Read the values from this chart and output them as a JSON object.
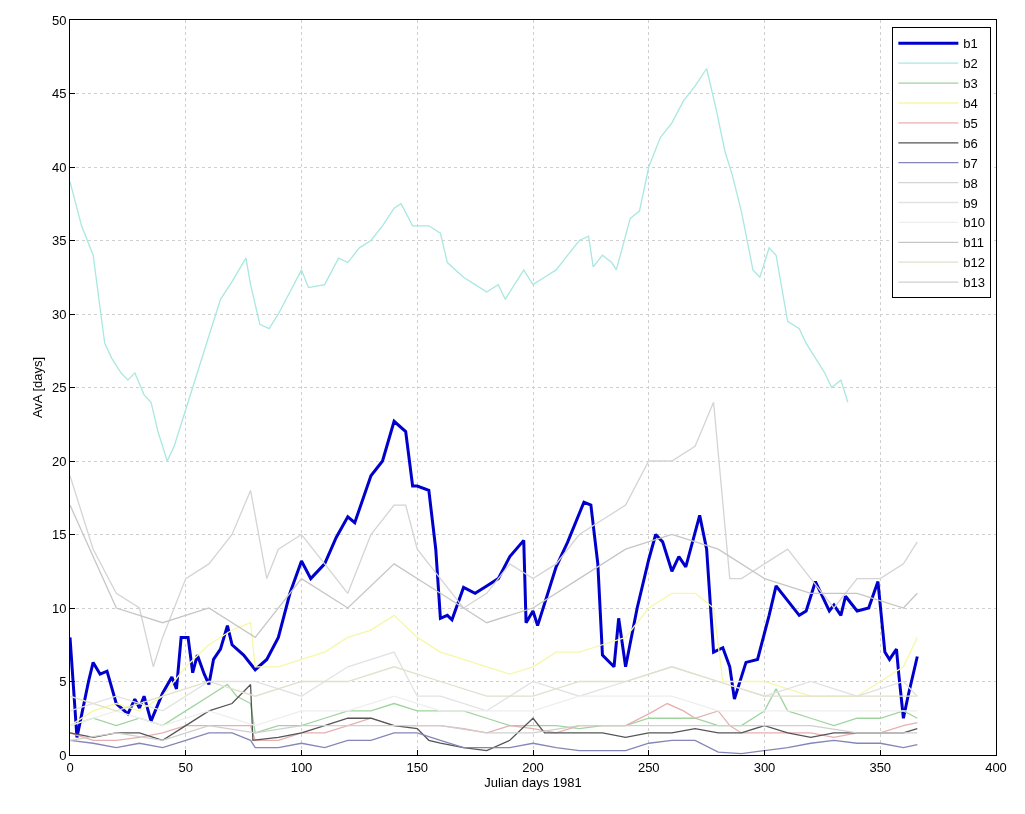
{
  "chart_data": {
    "type": "line",
    "xlabel": "Julian days 1981",
    "ylabel": "AvA [days]",
    "xlim": [
      0,
      400
    ],
    "xticks": [
      0,
      50,
      100,
      150,
      200,
      250,
      300,
      350,
      400
    ],
    "ylim": [
      0,
      50
    ],
    "yticks": [
      0,
      5,
      10,
      15,
      20,
      25,
      30,
      35,
      40,
      45,
      50
    ],
    "grid": true,
    "legend": "top right",
    "line_style": "solid",
    "marker": "none",
    "series": [
      {
        "name": "b1",
        "color": "#0000cc",
        "x": [
          0,
          3,
          8,
          10,
          13,
          16,
          20,
          25,
          28,
          30,
          32,
          35,
          40,
          44,
          46,
          48,
          51,
          53,
          55,
          58,
          60,
          62,
          65,
          68,
          70,
          75,
          80,
          85,
          90,
          95,
          100,
          104,
          110,
          115,
          120,
          123,
          130,
          135,
          140,
          145,
          148,
          150,
          155,
          158,
          160,
          163,
          165,
          170,
          175,
          180,
          185,
          190,
          196,
          197,
          200,
          202,
          210,
          215,
          222,
          225,
          228,
          230,
          235,
          237,
          240,
          245,
          250,
          253,
          256,
          260,
          263,
          266,
          272,
          275,
          278,
          282,
          285,
          287,
          292,
          297,
          302,
          305,
          310,
          315,
          318,
          322,
          328,
          330,
          333,
          335,
          340,
          345,
          349,
          352,
          354,
          357,
          358,
          360,
          362,
          366
        ],
        "values": [
          8,
          1.2,
          5,
          6.3,
          5.5,
          5.7,
          3.5,
          2.8,
          3.8,
          3.2,
          4,
          2.3,
          4.2,
          5.3,
          4.5,
          8,
          8,
          5.6,
          6.8,
          5.5,
          4.8,
          6.5,
          7.2,
          8.8,
          7.5,
          6.8,
          5.8,
          6.5,
          8,
          11,
          13.2,
          12,
          13,
          14.8,
          16.2,
          15.8,
          19,
          20,
          22.7,
          22,
          18.3,
          18.3,
          18,
          14,
          9.3,
          9.5,
          9.2,
          11.4,
          11,
          11.5,
          12,
          13.5,
          14.6,
          9,
          9.8,
          8.8,
          12.8,
          14.5,
          17.2,
          17,
          13,
          6.8,
          6,
          9.3,
          6,
          10,
          13.3,
          15,
          14.5,
          12.5,
          13.5,
          12.8,
          16.3,
          14,
          7,
          7.3,
          6,
          3.8,
          6.3,
          6.5,
          9.5,
          11.5,
          10.5,
          9.5,
          9.8,
          11.8,
          9.8,
          10.2,
          9.5,
          10.8,
          9.8,
          10,
          11.8,
          7,
          6.5,
          7.2,
          5.5,
          2.5,
          4,
          6.7
        ]
      },
      {
        "name": "b2",
        "color": "#a8e8e0",
        "x": [
          0,
          5,
          10,
          15,
          18,
          22,
          25,
          28,
          32,
          35,
          38,
          42,
          45,
          50,
          55,
          60,
          65,
          70,
          76,
          78,
          82,
          86,
          90,
          95,
          100,
          103,
          110,
          116,
          120,
          125,
          130,
          135,
          140,
          143,
          148,
          155,
          160,
          163,
          170,
          175,
          180,
          185,
          188,
          192,
          196,
          200,
          205,
          210,
          215,
          220,
          224,
          226,
          230,
          234,
          236,
          242,
          246,
          250,
          255,
          260,
          265,
          270,
          275,
          279,
          283,
          286,
          290,
          295,
          298,
          302,
          305,
          310,
          315,
          318,
          322,
          326,
          329,
          333,
          336
        ],
        "values": [
          39,
          36,
          34,
          28,
          27,
          26,
          25.5,
          26,
          24.5,
          24,
          22,
          20,
          21,
          23.5,
          26,
          28.5,
          31,
          32.2,
          33.8,
          32,
          29.3,
          29,
          30,
          31.5,
          33,
          31.8,
          32,
          33.8,
          33.5,
          34.5,
          35,
          36,
          37.2,
          37.5,
          36,
          36,
          35.5,
          33.5,
          32.5,
          32,
          31.5,
          32,
          31,
          32,
          33,
          32,
          32.5,
          33,
          34,
          35,
          35.3,
          33.2,
          34,
          33.5,
          33,
          36.5,
          37,
          40,
          42,
          43,
          44.5,
          45.5,
          46.7,
          44,
          41,
          39.5,
          37,
          33,
          32.5,
          34.5,
          34,
          29.5,
          29,
          28,
          27,
          26,
          25,
          25.5,
          24
        ]
      },
      {
        "name": "b3",
        "color": "#9fd49f",
        "x": [
          0,
          10,
          20,
          30,
          40,
          50,
          60,
          68,
          72,
          78,
          80,
          90,
          100,
          110,
          120,
          130,
          140,
          150,
          160,
          170,
          180,
          190,
          200,
          210,
          220,
          230,
          240,
          250,
          260,
          270,
          280,
          290,
          300,
          305,
          310,
          320,
          330,
          340,
          350,
          360,
          366
        ],
        "values": [
          2,
          2.5,
          2,
          2.5,
          2,
          3,
          4,
          4.8,
          4,
          3.5,
          1.5,
          2,
          2,
          2.5,
          3,
          3,
          3.5,
          3,
          3,
          3,
          2.5,
          2,
          2,
          2,
          1.8,
          2,
          2,
          2.5,
          2.5,
          2.5,
          2,
          2,
          3,
          4.5,
          3,
          2.5,
          2,
          2.5,
          2.5,
          3,
          2.5
        ]
      },
      {
        "name": "b4",
        "color": "#f7f7a8",
        "x": [
          0,
          10,
          20,
          30,
          40,
          50,
          60,
          70,
          78,
          80,
          90,
          100,
          110,
          120,
          130,
          140,
          150,
          160,
          170,
          180,
          190,
          200,
          210,
          220,
          230,
          240,
          250,
          260,
          270,
          278,
          282,
          290,
          300,
          310,
          320,
          330,
          340,
          350,
          360,
          366
        ],
        "values": [
          2,
          3,
          3.5,
          3,
          4,
          6,
          7.5,
          8.5,
          9,
          6,
          6,
          6.5,
          7,
          8,
          8.5,
          9.5,
          8,
          7,
          6.5,
          6,
          5.5,
          6,
          7,
          7,
          7.5,
          8,
          10,
          11,
          11,
          10,
          5,
          5,
          5,
          4.5,
          4,
          4,
          4,
          5,
          6,
          8
        ]
      },
      {
        "name": "b5",
        "color": "#e6b0b0",
        "x": [
          0,
          10,
          20,
          30,
          40,
          50,
          60,
          70,
          78,
          80,
          90,
          100,
          110,
          120,
          130,
          140,
          150,
          160,
          170,
          180,
          190,
          200,
          210,
          220,
          230,
          240,
          250,
          258,
          265,
          270,
          280,
          285,
          290,
          300,
          310,
          320,
          330,
          340,
          350,
          360,
          366
        ],
        "values": [
          1.5,
          1,
          1,
          1.2,
          1.5,
          2,
          2,
          2,
          2,
          1,
          1,
          1.5,
          1.5,
          2,
          2.5,
          2,
          2,
          2,
          1.8,
          1.5,
          2,
          1.8,
          1.5,
          2,
          2,
          2,
          2.8,
          3.5,
          3,
          2.5,
          3,
          2,
          1.5,
          1.5,
          1.5,
          1.5,
          1.2,
          1.5,
          1.5,
          2,
          2.2
        ]
      },
      {
        "name": "b6",
        "color": "#555555",
        "x": [
          0,
          10,
          20,
          30,
          40,
          50,
          60,
          70,
          78,
          79,
          90,
          100,
          110,
          120,
          130,
          140,
          150,
          155,
          160,
          170,
          180,
          190,
          200,
          205,
          210,
          220,
          230,
          240,
          250,
          260,
          270,
          280,
          290,
          300,
          310,
          320,
          330,
          340,
          350,
          360,
          366
        ],
        "values": [
          1.5,
          1.2,
          1.5,
          1.5,
          1,
          2,
          3,
          3.5,
          4.8,
          1,
          1.2,
          1.5,
          2,
          2.5,
          2.5,
          2,
          1.8,
          1,
          0.8,
          0.5,
          0.3,
          1,
          2.5,
          1.5,
          1.5,
          1.5,
          1.5,
          1.2,
          1.5,
          1.5,
          1.8,
          1.5,
          1.5,
          2,
          1.5,
          1.2,
          1.5,
          1.5,
          1.5,
          1.5,
          1.8
        ]
      },
      {
        "name": "b7",
        "color": "#8585b8",
        "x": [
          0,
          10,
          20,
          30,
          40,
          50,
          60,
          70,
          78,
          80,
          90,
          100,
          110,
          120,
          130,
          140,
          150,
          160,
          170,
          180,
          190,
          200,
          210,
          220,
          230,
          240,
          250,
          260,
          270,
          280,
          290,
          300,
          310,
          320,
          330,
          340,
          350,
          360,
          366
        ],
        "values": [
          1,
          0.8,
          0.5,
          0.8,
          0.5,
          1,
          1.5,
          1.5,
          1,
          0.5,
          0.5,
          0.8,
          0.5,
          1,
          1,
          1.5,
          1.5,
          1,
          0.5,
          0.5,
          0.5,
          0.8,
          0.5,
          0.3,
          0.3,
          0.3,
          0.8,
          1,
          1,
          0.2,
          0.1,
          0.3,
          0.5,
          0.8,
          1,
          0.8,
          0.8,
          0.5,
          0.7
        ]
      },
      {
        "name": "b8",
        "color": "#d4d4d4",
        "x": [
          0,
          10,
          20,
          30,
          36,
          40,
          50,
          60,
          70,
          78,
          85,
          90,
          100,
          110,
          120,
          130,
          140,
          145,
          150,
          160,
          170,
          180,
          190,
          200,
          210,
          220,
          230,
          240,
          250,
          260,
          270,
          278,
          285,
          290,
          300,
          310,
          320,
          330,
          340,
          350,
          360,
          366
        ],
        "values": [
          19,
          14,
          11,
          10,
          6,
          8,
          12,
          13,
          15,
          18,
          12,
          14,
          15,
          13,
          11,
          15,
          17,
          17,
          14,
          12,
          10,
          11,
          13,
          12,
          13,
          15,
          16,
          17,
          20,
          20,
          21,
          24,
          12,
          12,
          13,
          14,
          12,
          10,
          12,
          12,
          13,
          14.5
        ]
      },
      {
        "name": "b9",
        "color": "#e2e2e2",
        "x": [
          0,
          20,
          40,
          60,
          80,
          100,
          120,
          140,
          150,
          160,
          180,
          200,
          220,
          240,
          260,
          280,
          300,
          320,
          340,
          360,
          366
        ],
        "values": [
          3,
          4,
          3,
          5,
          5,
          4,
          6,
          7,
          4,
          4,
          3,
          5,
          4,
          5,
          6,
          5,
          4,
          5,
          4,
          5,
          4
        ]
      },
      {
        "name": "b10",
        "color": "#eeeeee",
        "x": [
          0,
          20,
          40,
          60,
          80,
          100,
          120,
          140,
          160,
          180,
          200,
          220,
          240,
          260,
          280,
          300,
          320,
          340,
          360,
          366
        ],
        "values": [
          2,
          3,
          2,
          3,
          2,
          3,
          3,
          4,
          3,
          3,
          3,
          4,
          4,
          4,
          3,
          3,
          3,
          3,
          3,
          3
        ]
      },
      {
        "name": "b11",
        "color": "#c6c6c6",
        "x": [
          0,
          20,
          40,
          60,
          80,
          100,
          120,
          140,
          160,
          180,
          200,
          220,
          240,
          260,
          280,
          300,
          320,
          340,
          360,
          366
        ],
        "values": [
          17,
          10,
          9,
          10,
          8,
          12,
          10,
          13,
          11,
          9,
          10,
          12,
          14,
          15,
          14,
          12,
          11,
          11,
          10,
          11
        ]
      },
      {
        "name": "b12",
        "color": "#e0e0cc",
        "x": [
          0,
          20,
          40,
          60,
          80,
          100,
          120,
          140,
          160,
          180,
          200,
          220,
          240,
          260,
          280,
          300,
          320,
          340,
          360,
          366
        ],
        "values": [
          4,
          3,
          4,
          5,
          4,
          5,
          5,
          6,
          5,
          4,
          4,
          5,
          5,
          6,
          5,
          4,
          4,
          4,
          4,
          4
        ]
      },
      {
        "name": "b13",
        "color": "#cfcfcf",
        "x": [
          0,
          20,
          40,
          60,
          80,
          100,
          120,
          140,
          160,
          180,
          200,
          220,
          240,
          260,
          280,
          300,
          320,
          340,
          360,
          366
        ],
        "values": [
          1,
          1.5,
          1,
          2,
          1.5,
          2,
          2,
          2,
          2,
          1.5,
          1.5,
          2,
          2,
          2,
          2,
          2,
          2,
          1.5,
          1.5,
          1.5
        ]
      }
    ]
  }
}
